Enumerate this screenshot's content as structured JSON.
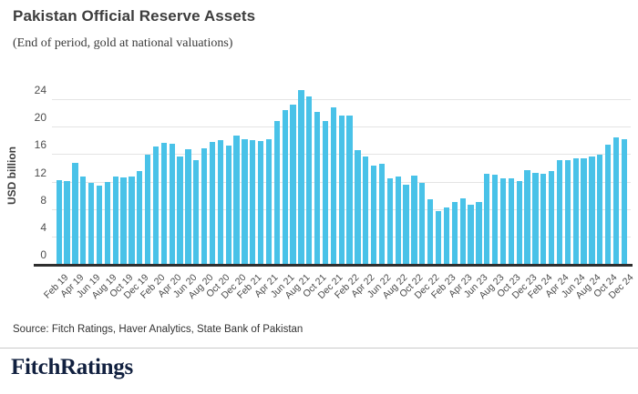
{
  "header": {
    "title": "Pakistan Official Reserve Assets",
    "subtitle": "(End of period, gold at national valuations)"
  },
  "chart_data": {
    "type": "bar",
    "title": "Pakistan Official Reserve Assets",
    "subtitle": "(End of period, gold at national valuations)",
    "ylabel": "USD billion",
    "xlabel": "",
    "ylim": [
      0,
      26
    ],
    "yticks": [
      0,
      4,
      8,
      12,
      16,
      20,
      24
    ],
    "grid": "horizontal",
    "legend": "none",
    "bar_color": "#49C2E8",
    "categories": [
      "Feb 19",
      "Mar 19",
      "Apr 19",
      "May 19",
      "Jun 19",
      "Jul 19",
      "Aug 19",
      "Sep 19",
      "Oct 19",
      "Nov 19",
      "Dec 19",
      "Jan 20",
      "Feb 20",
      "Mar 20",
      "Apr 20",
      "May 20",
      "Jun 20",
      "Jul 20",
      "Aug 20",
      "Sep 20",
      "Oct 20",
      "Nov 20",
      "Dec 20",
      "Jan 21",
      "Feb 21",
      "Mar 21",
      "Apr 21",
      "May 21",
      "Jun 21",
      "Jul 21",
      "Aug 21",
      "Sep 21",
      "Oct 21",
      "Nov 21",
      "Dec 21",
      "Jan 22",
      "Feb 22",
      "Mar 22",
      "Apr 22",
      "May 22",
      "Jun 22",
      "Jul 22",
      "Aug 22",
      "Sep 22",
      "Oct 22",
      "Nov 22",
      "Dec 22",
      "Jan 23",
      "Feb 23",
      "Mar 23",
      "Apr 23",
      "May 23",
      "Jun 23",
      "Jul 23",
      "Aug 23",
      "Sep 23",
      "Oct 23",
      "Nov 23",
      "Dec 23",
      "Jan 24",
      "Feb 24",
      "Mar 24",
      "Apr 24",
      "May 24",
      "Jun 24",
      "Jul 24",
      "Aug 24",
      "Sep 24",
      "Oct 24",
      "Nov 24",
      "Dec 24"
    ],
    "values": [
      12.3,
      12.2,
      14.9,
      12.9,
      12.0,
      11.6,
      12.1,
      12.9,
      12.7,
      12.9,
      13.7,
      16.0,
      17.2,
      17.8,
      17.6,
      15.8,
      16.9,
      15.2,
      17.0,
      17.9,
      18.2,
      17.4,
      18.8,
      18.3,
      18.2,
      18.0,
      18.3,
      21.0,
      22.6,
      23.4,
      25.5,
      24.5,
      22.3,
      21.0,
      23.0,
      21.8,
      21.8,
      16.7,
      15.8,
      14.5,
      14.7,
      12.6,
      12.9,
      11.7,
      13.0,
      11.9,
      9.6,
      7.8,
      8.4,
      9.2,
      9.7,
      8.8,
      9.2,
      13.3,
      13.2,
      12.6,
      12.6,
      12.2,
      13.8,
      13.4,
      13.3,
      13.7,
      15.2,
      15.2,
      15.5,
      15.5,
      15.8,
      16.0,
      17.5,
      18.6,
      18.3
    ],
    "x_tick_labels": [
      "Feb 19",
      "Apr 19",
      "Jun 19",
      "Aug 19",
      "Oct 19",
      "Dec 19",
      "Feb 20",
      "Apr 20",
      "Jun 20",
      "Aug 20",
      "Oct 20",
      "Dec 20",
      "Feb 21",
      "Apr 21",
      "Jun 21",
      "Aug 21",
      "Oct 21",
      "Dec 21",
      "Feb 22",
      "Apr 22",
      "Jun 22",
      "Aug 22",
      "Oct 22",
      "Dec 22",
      "Feb 23",
      "Apr 23",
      "Jun 23",
      "Aug 23",
      "Oct 23",
      "Dec 23",
      "Feb 24",
      "Apr 24",
      "Jun 24",
      "Aug 24",
      "Oct 24",
      "Dec 24"
    ],
    "x_tick_every_n_bars": 2
  },
  "footer": {
    "source": "Source: Fitch Ratings, Haver Analytics, State Bank of Pakistan",
    "logo_text": "FitchRatings",
    "logo_color": "#11203f"
  }
}
